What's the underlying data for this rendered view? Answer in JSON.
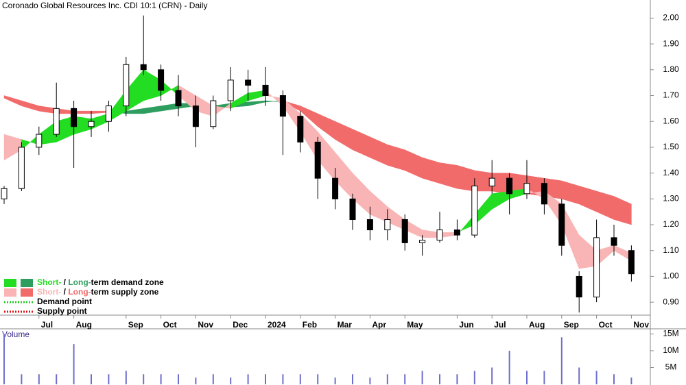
{
  "chart_data": [
    {
      "type": "candlestick",
      "title": "Coronado Global Resources Inc. CDI 10:1 (CRN) - Daily",
      "categories": [
        null,
        null,
        "Jul",
        null,
        "Aug",
        null,
        null,
        "Sep",
        null,
        "Oct",
        null,
        "Nov",
        null,
        "Dec",
        null,
        "2024",
        null,
        "Feb",
        null,
        "Mar",
        null,
        "Apr",
        null,
        "May",
        null,
        null,
        "Jun",
        null,
        "Jul",
        null,
        "Aug",
        null,
        "Sep",
        null,
        "Oct",
        null,
        "Nov"
      ],
      "open": [
        1.3,
        1.34,
        1.5,
        1.55,
        1.65,
        1.58,
        1.6,
        1.66,
        1.82,
        1.8,
        1.72,
        1.66,
        1.58,
        1.68,
        1.76,
        1.74,
        1.7,
        1.62,
        1.52,
        1.38,
        1.3,
        1.22,
        1.18,
        1.22,
        1.13,
        1.14,
        1.18,
        1.16,
        1.35,
        1.38,
        1.32,
        1.36,
        1.28,
        1.0,
        0.92,
        1.15,
        1.1
      ],
      "high": [
        1.35,
        1.52,
        1.58,
        1.75,
        1.68,
        1.64,
        1.68,
        1.85,
        2.01,
        1.82,
        1.78,
        1.7,
        1.7,
        1.81,
        1.8,
        1.81,
        1.72,
        1.64,
        1.54,
        1.42,
        1.32,
        1.27,
        1.26,
        1.24,
        1.16,
        1.25,
        1.22,
        1.38,
        1.45,
        1.4,
        1.45,
        1.38,
        1.3,
        1.02,
        1.22,
        1.2,
        1.12
      ],
      "low": [
        1.28,
        1.33,
        1.47,
        1.54,
        1.42,
        1.54,
        1.56,
        1.62,
        1.78,
        1.68,
        1.62,
        1.5,
        1.57,
        1.64,
        1.68,
        1.66,
        1.47,
        1.48,
        1.3,
        1.26,
        1.18,
        1.14,
        1.14,
        1.1,
        1.08,
        1.13,
        1.14,
        1.15,
        1.32,
        1.24,
        1.3,
        1.24,
        1.08,
        0.86,
        0.9,
        1.08,
        0.98
      ],
      "close": [
        1.34,
        1.5,
        1.55,
        1.65,
        1.58,
        1.6,
        1.66,
        1.82,
        1.8,
        1.72,
        1.66,
        1.58,
        1.68,
        1.76,
        1.74,
        1.7,
        1.62,
        1.52,
        1.38,
        1.3,
        1.22,
        1.18,
        1.22,
        1.13,
        1.14,
        1.18,
        1.16,
        1.35,
        1.38,
        1.32,
        1.36,
        1.28,
        1.12,
        0.92,
        1.15,
        1.12,
        1.01
      ],
      "short_term_band": {
        "demand_color": "#22dd22",
        "supply_color": "#f9b5b5",
        "fast": [
          1.45,
          1.49,
          1.55,
          1.6,
          1.62,
          1.61,
          1.63,
          1.72,
          1.8,
          1.76,
          1.7,
          1.64,
          1.62,
          1.67,
          1.71,
          1.72,
          1.66,
          1.56,
          1.45,
          1.37,
          1.3,
          1.24,
          1.21,
          1.18,
          1.15,
          1.15,
          1.16,
          1.24,
          1.32,
          1.33,
          1.34,
          1.3,
          1.2,
          1.03,
          1.04,
          1.1,
          1.06
        ],
        "slow": [
          1.55,
          1.53,
          1.51,
          1.52,
          1.55,
          1.57,
          1.6,
          1.64,
          1.68,
          1.7,
          1.74,
          1.7,
          1.66,
          1.65,
          1.68,
          1.7,
          1.69,
          1.63,
          1.56,
          1.48,
          1.4,
          1.33,
          1.27,
          1.22,
          1.18,
          1.17,
          1.17,
          1.2,
          1.26,
          1.3,
          1.32,
          1.33,
          1.28,
          1.16,
          1.1,
          1.12,
          1.09
        ]
      },
      "long_term_band": {
        "demand_color": "#2e9e5e",
        "supply_color": "#f26b6b",
        "fast": [
          1.69,
          1.66,
          1.64,
          1.63,
          1.63,
          1.63,
          1.635,
          1.64,
          1.65,
          1.66,
          1.67,
          1.67,
          1.66,
          1.67,
          1.675,
          1.68,
          1.675,
          1.64,
          1.58,
          1.53,
          1.49,
          1.46,
          1.43,
          1.41,
          1.38,
          1.36,
          1.34,
          1.33,
          1.33,
          1.32,
          1.32,
          1.31,
          1.3,
          1.28,
          1.25,
          1.22,
          1.2
        ],
        "slow": [
          1.7,
          1.68,
          1.66,
          1.65,
          1.64,
          1.64,
          1.64,
          1.63,
          1.63,
          1.64,
          1.65,
          1.66,
          1.65,
          1.655,
          1.66,
          1.675,
          1.68,
          1.66,
          1.63,
          1.6,
          1.57,
          1.54,
          1.51,
          1.49,
          1.46,
          1.44,
          1.43,
          1.41,
          1.4,
          1.4,
          1.39,
          1.38,
          1.37,
          1.35,
          1.33,
          1.31,
          1.28
        ]
      },
      "ylim": [
        0.85,
        2.07
      ],
      "yticks": [
        {
          "value": 0.9,
          "label": "0.90"
        },
        {
          "value": 1.0,
          "label": "1.00"
        },
        {
          "value": 1.1,
          "label": "1.10"
        },
        {
          "value": 1.2,
          "label": "1.20"
        },
        {
          "value": 1.3,
          "label": "1.30"
        },
        {
          "value": 1.4,
          "label": "1.40"
        },
        {
          "value": 1.5,
          "label": "1.50"
        },
        {
          "value": 1.6,
          "label": "1.60"
        },
        {
          "value": 1.7,
          "label": "1.70"
        },
        {
          "value": 1.8,
          "label": "1.80"
        },
        {
          "value": 1.9,
          "label": "1.90"
        },
        {
          "value": 2.0,
          "label": "2.00"
        }
      ],
      "legend": [
        {
          "parts": [
            "Short-",
            " / ",
            "Long-",
            "term demand zone"
          ],
          "colors": [
            "#22dd22",
            "#000000",
            "#2e9e5e",
            "#000000"
          ],
          "swatches": [
            "#22dd22",
            "#2e9e5e"
          ]
        },
        {
          "parts": [
            "Short-",
            " / ",
            "Long-",
            "term supply zone"
          ],
          "colors": [
            "#f9b5b5",
            "#000000",
            "#f26b6b",
            "#000000"
          ],
          "swatches": [
            "#f9b5b5",
            "#f26b6b"
          ]
        },
        {
          "parts": [
            "Demand point"
          ],
          "colors": [
            "#000000"
          ],
          "dotted": "#22cc22"
        },
        {
          "parts": [
            "Supply point"
          ],
          "colors": [
            "#000000"
          ],
          "dotted": "#dd1111"
        }
      ]
    },
    {
      "type": "bar",
      "title": "Volume",
      "color": "#6e6ecc",
      "values": [
        15,
        3,
        3,
        3,
        12,
        3,
        3,
        4,
        3,
        3,
        3,
        2,
        3,
        2,
        3,
        3,
        3,
        3,
        3,
        2,
        3,
        2,
        3,
        3,
        4,
        3,
        3,
        4,
        5,
        10,
        4,
        4,
        14,
        5,
        4,
        3,
        2
      ],
      "ylim": [
        0,
        15.5
      ],
      "yticks": [
        {
          "value": 5,
          "label": "5M"
        },
        {
          "value": 10,
          "label": "10M"
        },
        {
          "value": 15,
          "label": "15M"
        }
      ]
    }
  ]
}
